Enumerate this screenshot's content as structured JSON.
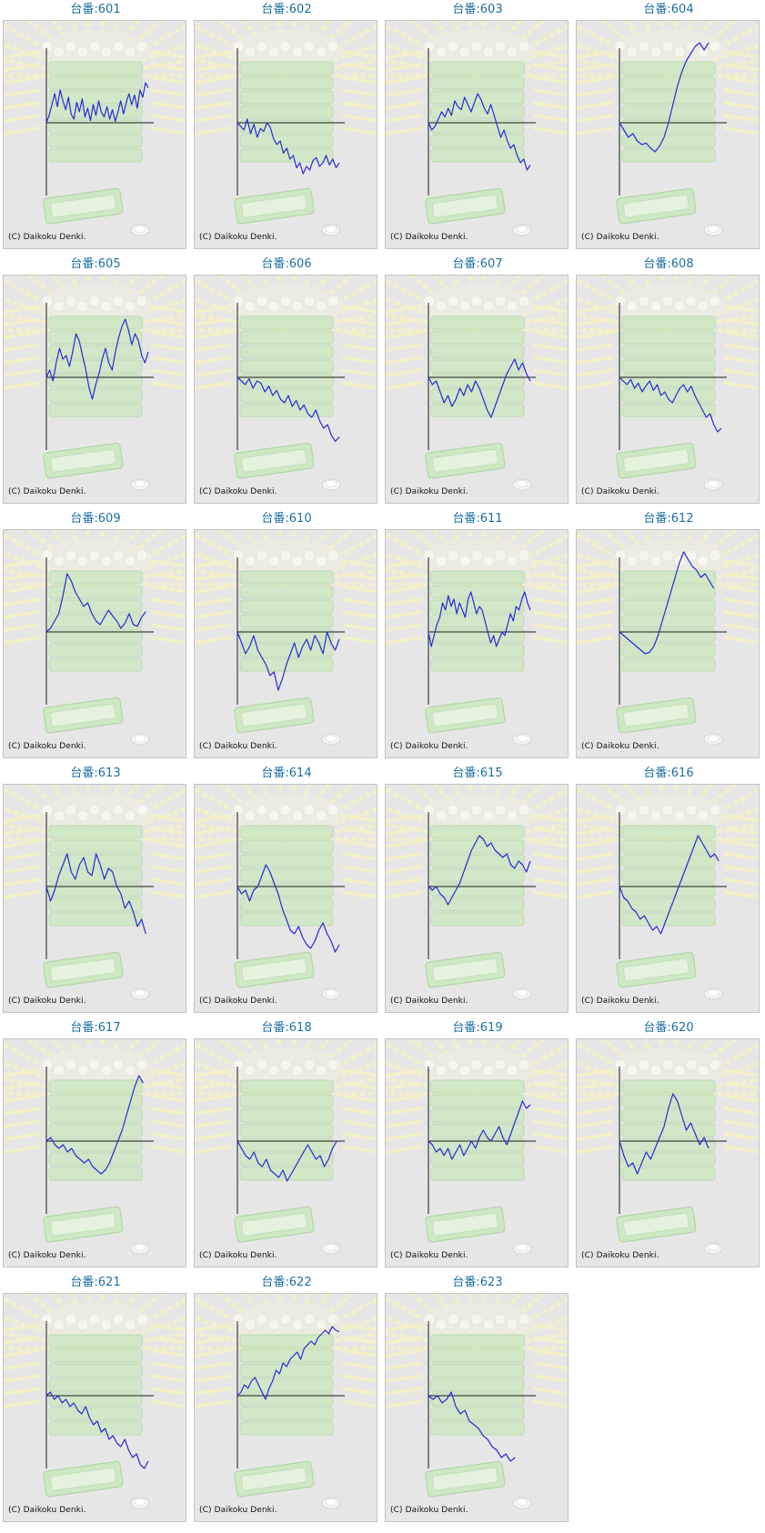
{
  "colors": {
    "title": "#1d6fa3",
    "line": "#2a2ad6",
    "axis": "#1a1a1a",
    "background": "#e6e6e6",
    "machine_tint": "#cfe8c4",
    "ray_tint": "#f4f1c9"
  },
  "copyright": "(C) Daikoku Denki.",
  "chart_data": [
    {
      "type": "line",
      "title": "台番:601",
      "y": [
        0,
        10,
        25,
        40,
        22,
        45,
        30,
        18,
        35,
        12,
        5,
        28,
        15,
        33,
        8,
        20,
        3,
        25,
        10,
        30,
        14,
        8,
        22,
        5,
        18,
        2,
        15,
        30,
        12,
        28,
        40,
        25,
        38,
        20,
        45,
        35,
        55,
        48
      ]
    },
    {
      "type": "line",
      "title": "台番:602",
      "y": [
        0,
        -5,
        -10,
        5,
        -15,
        -2,
        -20,
        -8,
        -12,
        0,
        -6,
        -22,
        -30,
        -25,
        -42,
        -35,
        -50,
        -45,
        -62,
        -55,
        -70,
        -60,
        -65,
        -52,
        -48,
        -60,
        -55,
        -45,
        -58,
        -50,
        -62,
        -55
      ]
    },
    {
      "type": "line",
      "title": "台番:603",
      "y": [
        0,
        -10,
        -5,
        5,
        15,
        8,
        20,
        10,
        30,
        22,
        18,
        35,
        25,
        15,
        28,
        40,
        32,
        20,
        12,
        25,
        10,
        -5,
        -20,
        -10,
        -25,
        -35,
        -30,
        -45,
        -55,
        -50,
        -65,
        -58
      ]
    },
    {
      "type": "line",
      "title": "台番:604",
      "y": [
        0,
        -10,
        -20,
        -15,
        -25,
        -30,
        -28,
        -35,
        -40,
        -32,
        -20,
        0,
        25,
        50,
        70,
        85,
        95,
        105,
        110,
        100,
        112
      ]
    },
    {
      "type": "line",
      "title": "台番:605",
      "y": [
        0,
        10,
        -5,
        20,
        40,
        25,
        30,
        15,
        35,
        60,
        50,
        30,
        10,
        -15,
        -30,
        -10,
        5,
        25,
        40,
        20,
        10,
        35,
        55,
        70,
        80,
        65,
        45,
        60,
        50,
        30,
        20,
        35
      ]
    },
    {
      "type": "line",
      "title": "台番:606",
      "y": [
        0,
        -5,
        -10,
        -2,
        -15,
        -5,
        -8,
        -20,
        -12,
        -25,
        -18,
        -30,
        -35,
        -25,
        -40,
        -32,
        -45,
        -38,
        -50,
        -55,
        -45,
        -60,
        -70,
        -65,
        -80,
        -88,
        -82
      ]
    },
    {
      "type": "line",
      "title": "台番:607",
      "y": [
        0,
        -10,
        -5,
        -20,
        -35,
        -25,
        -40,
        -30,
        -15,
        -25,
        -10,
        -20,
        -5,
        -15,
        -30,
        -45,
        -55,
        -40,
        -25,
        -10,
        5,
        15,
        25,
        10,
        20,
        5,
        -5
      ]
    },
    {
      "type": "line",
      "title": "台番:608",
      "y": [
        0,
        -5,
        -10,
        -3,
        -15,
        -8,
        -20,
        -12,
        -5,
        -18,
        -10,
        -25,
        -20,
        -30,
        -35,
        -25,
        -15,
        -10,
        -20,
        -12,
        -25,
        -35,
        -45,
        -55,
        -50,
        -65,
        -75,
        -70
      ]
    },
    {
      "type": "line",
      "title": "台番:609",
      "y": [
        0,
        5,
        15,
        25,
        50,
        80,
        70,
        55,
        45,
        35,
        40,
        25,
        15,
        10,
        20,
        30,
        22,
        15,
        5,
        12,
        25,
        10,
        8,
        20,
        28
      ]
    },
    {
      "type": "line",
      "title": "台番:610",
      "y": [
        0,
        -15,
        -30,
        -20,
        -5,
        -25,
        -35,
        -45,
        -60,
        -55,
        -80,
        -65,
        -45,
        -30,
        -15,
        -35,
        -20,
        -10,
        -25,
        -5,
        -15,
        -30,
        0,
        -15,
        -25,
        -10
      ]
    },
    {
      "type": "line",
      "title": "台番:611",
      "y": [
        0,
        -20,
        -5,
        10,
        20,
        40,
        30,
        50,
        35,
        45,
        25,
        40,
        30,
        20,
        45,
        55,
        40,
        25,
        35,
        30,
        15,
        0,
        -15,
        -5,
        -20,
        -10,
        0,
        -5,
        10,
        25,
        15,
        35,
        30,
        45,
        55,
        40,
        30
      ]
    },
    {
      "type": "line",
      "title": "台番:612",
      "y": [
        0,
        -5,
        -10,
        -15,
        -20,
        -25,
        -30,
        -28,
        -20,
        -5,
        15,
        35,
        55,
        75,
        95,
        110,
        100,
        90,
        85,
        75,
        80,
        70,
        60
      ]
    },
    {
      "type": "line",
      "title": "台番:613",
      "y": [
        0,
        -20,
        -5,
        15,
        30,
        45,
        20,
        10,
        30,
        40,
        20,
        15,
        45,
        30,
        10,
        25,
        20,
        0,
        -10,
        -30,
        -20,
        -35,
        -55,
        -45,
        -65
      ]
    },
    {
      "type": "line",
      "title": "台番:614",
      "y": [
        0,
        -10,
        -5,
        -20,
        -5,
        0,
        15,
        30,
        20,
        5,
        -10,
        -30,
        -45,
        -60,
        -65,
        -55,
        -70,
        -80,
        -85,
        -75,
        -60,
        -50,
        -65,
        -75,
        -90,
        -80
      ]
    },
    {
      "type": "line",
      "title": "台番:615",
      "y": [
        0,
        -5,
        0,
        -10,
        -15,
        -25,
        -15,
        -5,
        5,
        20,
        35,
        50,
        60,
        70,
        65,
        55,
        60,
        50,
        45,
        40,
        45,
        30,
        25,
        35,
        30,
        20,
        35
      ]
    },
    {
      "type": "line",
      "title": "台番:616",
      "y": [
        0,
        -15,
        -20,
        -30,
        -35,
        -45,
        -40,
        -50,
        -60,
        -55,
        -65,
        -50,
        -35,
        -20,
        -5,
        10,
        25,
        40,
        55,
        70,
        60,
        50,
        40,
        45,
        35
      ]
    },
    {
      "type": "line",
      "title": "台番:617",
      "y": [
        0,
        5,
        -5,
        -10,
        -5,
        -15,
        -10,
        -20,
        -25,
        -30,
        -25,
        -35,
        -40,
        -45,
        -40,
        -30,
        -15,
        0,
        15,
        35,
        55,
        75,
        90,
        80
      ]
    },
    {
      "type": "line",
      "title": "台番:618",
      "y": [
        0,
        -10,
        -20,
        -25,
        -15,
        -30,
        -35,
        -25,
        -40,
        -45,
        -50,
        -40,
        -55,
        -45,
        -35,
        -25,
        -15,
        -5,
        -15,
        -25,
        -20,
        -35,
        -25,
        -10,
        0
      ]
    },
    {
      "type": "line",
      "title": "台番:619",
      "y": [
        0,
        -5,
        -15,
        -10,
        -20,
        -10,
        -25,
        -15,
        -5,
        -20,
        -10,
        0,
        -10,
        5,
        15,
        5,
        0,
        10,
        20,
        5,
        -5,
        10,
        25,
        40,
        55,
        45,
        50
      ]
    },
    {
      "type": "line",
      "title": "台番:620",
      "y": [
        0,
        -20,
        -35,
        -30,
        -45,
        -30,
        -15,
        -25,
        -10,
        5,
        20,
        45,
        65,
        55,
        35,
        15,
        25,
        10,
        -5,
        5,
        -10
      ]
    },
    {
      "type": "line",
      "title": "台番:621",
      "y": [
        0,
        5,
        -5,
        0,
        -10,
        -5,
        -15,
        -10,
        -20,
        -25,
        -15,
        -30,
        -40,
        -35,
        -50,
        -45,
        -60,
        -55,
        -65,
        -70,
        -60,
        -75,
        -85,
        -80,
        -95,
        -100,
        -90
      ]
    },
    {
      "type": "line",
      "title": "台番:622",
      "y": [
        0,
        5,
        15,
        10,
        20,
        25,
        15,
        5,
        -5,
        10,
        20,
        35,
        30,
        45,
        40,
        50,
        55,
        60,
        50,
        65,
        70,
        75,
        70,
        80,
        85,
        90,
        85,
        95,
        90,
        88
      ]
    },
    {
      "type": "line",
      "title": "台番:623",
      "y": [
        0,
        -5,
        0,
        -10,
        -5,
        5,
        -15,
        -25,
        -20,
        -35,
        -40,
        -45,
        -55,
        -60,
        -70,
        -75,
        -85,
        -80,
        -90,
        -85
      ]
    }
  ]
}
